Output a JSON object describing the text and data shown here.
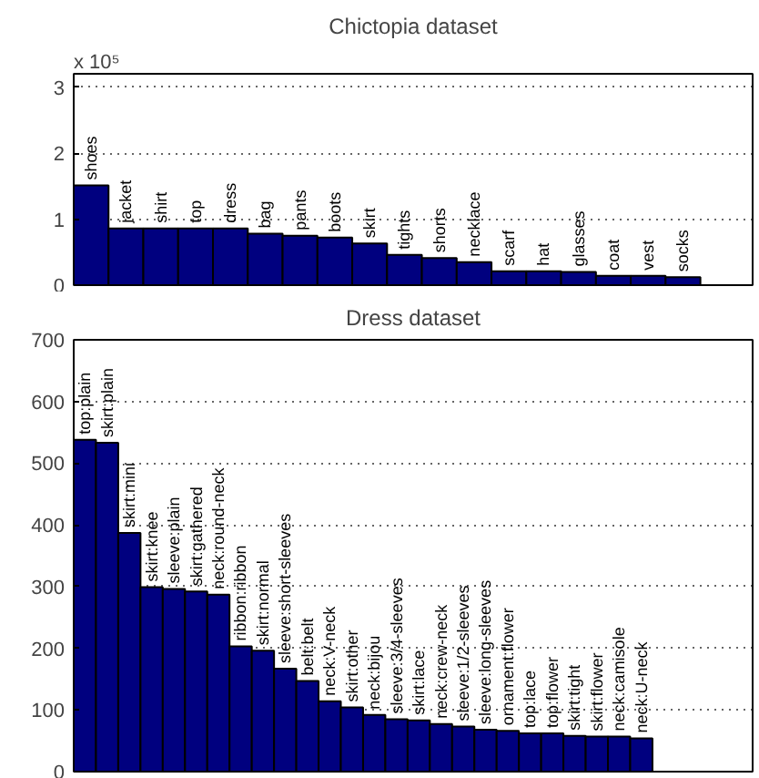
{
  "chart_data": [
    {
      "type": "bar",
      "title": "Chictopia dataset",
      "categories": [
        "shoes",
        "jacket",
        "shirt",
        "top",
        "dress",
        "bag",
        "pants",
        "boots",
        "skirt",
        "tights",
        "shorts",
        "necklace",
        "scarf",
        "hat",
        "glasses",
        "coat",
        "vest",
        "socks"
      ],
      "values": [
        1.51,
        0.86,
        0.86,
        0.86,
        0.86,
        0.78,
        0.75,
        0.72,
        0.63,
        0.46,
        0.41,
        0.35,
        0.21,
        0.21,
        0.2,
        0.14,
        0.14,
        0.12
      ],
      "color": "#00007f",
      "ylim": [
        0,
        3.2
      ],
      "yticks": [
        0,
        1,
        2,
        3
      ],
      "grid": "y",
      "tick_labels": "y",
      "annotations": [
        "x 10⁵"
      ]
    },
    {
      "type": "bar",
      "title": "Dress dataset",
      "categories": [
        "top:plain",
        "skirt:plain",
        "skirt:mini",
        "skirt:knee",
        "sleeve:plain",
        "skirt:gathered",
        "neck:round-neck",
        "ribbon:ribbon",
        "skirt:normal",
        "sleeve:short-sleeves",
        "belt:belt",
        "neck:V-neck",
        "skirt:other",
        "neck:bijou",
        "sleeve:3/4-sleeves",
        "skirt:lace",
        "neck:crew-neck",
        "sleeve:1/2-sleeves",
        "sleeve:long-sleeves",
        "ornament:flower",
        "top:lace",
        "top:flower",
        "skirt:tight",
        "skirt:flower",
        "neck:camisole",
        "neck:U-neck"
      ],
      "values": [
        538,
        533,
        387,
        299,
        296,
        292,
        287,
        203,
        196,
        167,
        147,
        114,
        104,
        92,
        85,
        83,
        77,
        73,
        68,
        66,
        62,
        62,
        58,
        57,
        57,
        54
      ],
      "color": "#00007f",
      "ylim": [
        0,
        700
      ],
      "yticks": [
        0,
        100,
        200,
        300,
        400,
        500,
        600,
        700
      ],
      "grid": "y",
      "tick_labels": "y"
    }
  ]
}
